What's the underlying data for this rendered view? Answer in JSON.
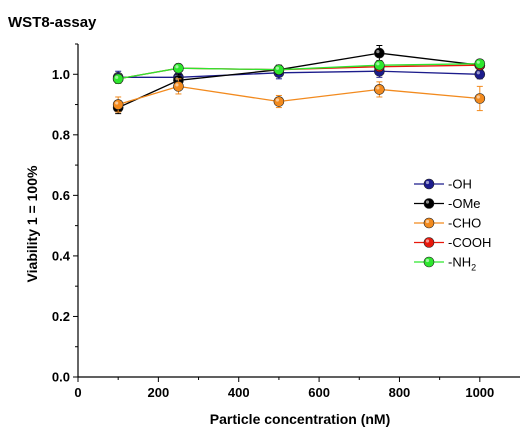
{
  "chart_data": {
    "type": "line",
    "title": "WST8-assay",
    "xlabel": "Particle concentration (nM)",
    "ylabel": "Viability 1 = 100%",
    "xlim": [
      0,
      1100
    ],
    "ylim": [
      0,
      1.1
    ],
    "xticks": [
      0,
      200,
      400,
      600,
      800,
      1000
    ],
    "yticks": [
      0.0,
      0.2,
      0.4,
      0.6,
      0.8,
      1.0
    ],
    "xtick_labels": [
      "0",
      "200",
      "400",
      "600",
      "800",
      "1000"
    ],
    "ytick_labels": [
      "0.0",
      "0.2",
      "0.4",
      "0.6",
      "0.8",
      "1.0"
    ],
    "x": [
      100,
      250,
      500,
      750,
      1000
    ],
    "legend_position": "right-middle",
    "grid": false,
    "series": [
      {
        "name": "-OH",
        "label_main": "-OH",
        "label_sub": "",
        "color": "#1c1c8c",
        "values": [
          0.99,
          0.99,
          1.005,
          1.01,
          1.0
        ],
        "errors": [
          0.02,
          0.015,
          0.02,
          0.02,
          0.015
        ]
      },
      {
        "name": "-OMe",
        "label_main": "-OMe",
        "label_sub": "",
        "color": "#000000",
        "values": [
          0.89,
          0.98,
          1.015,
          1.07,
          1.03
        ],
        "errors": [
          0.02,
          0.02,
          0.015,
          0.025,
          0.01
        ]
      },
      {
        "name": "-CHO",
        "label_main": "-CHO",
        "label_sub": "",
        "color": "#f28a1e",
        "values": [
          0.9,
          0.96,
          0.91,
          0.95,
          0.92
        ],
        "errors": [
          0.025,
          0.025,
          0.02,
          0.025,
          0.04
        ]
      },
      {
        "name": "-COOH",
        "label_main": "-COOH",
        "label_sub": "",
        "color": "#e8180c",
        "values": [
          0.985,
          1.02,
          1.015,
          1.025,
          1.03
        ],
        "errors": [
          0.015,
          0.01,
          0.01,
          0.01,
          0.01
        ]
      },
      {
        "name": "-NH2",
        "label_main": "-NH",
        "label_sub": "2",
        "color": "#2ee62e",
        "values": [
          0.985,
          1.02,
          1.015,
          1.03,
          1.035
        ],
        "errors": [
          0.015,
          0.01,
          0.01,
          0.01,
          0.01
        ]
      }
    ]
  }
}
